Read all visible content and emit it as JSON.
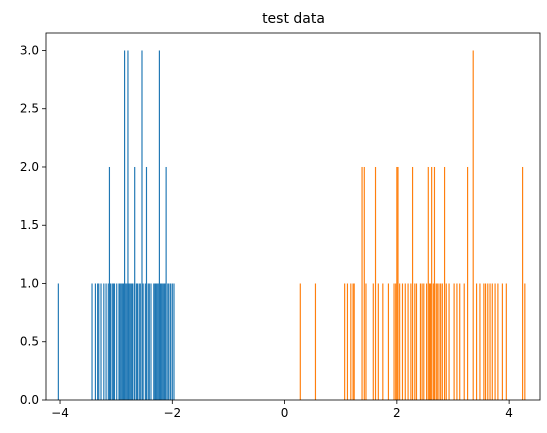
{
  "chart_data": {
    "type": "bar",
    "title": "test data",
    "xlabel": "",
    "ylabel": "",
    "xlim": [
      -4.25,
      4.55
    ],
    "ylim": [
      0,
      3.15
    ],
    "xticks": [
      -4,
      -2,
      0,
      2,
      4
    ],
    "xtick_labels": [
      "−4",
      "−2",
      "0",
      "2",
      "4"
    ],
    "yticks": [
      0.0,
      0.5,
      1.0,
      1.5,
      2.0,
      2.5,
      3.0
    ],
    "ytick_labels": [
      "0.0",
      "0.5",
      "1.0",
      "1.5",
      "2.0",
      "2.5",
      "3.0"
    ],
    "grid": false,
    "bin_width": 0.0206,
    "series": [
      {
        "color": "#1f77b4",
        "points": [
          [
            -4.03,
            1
          ],
          [
            -3.43,
            1
          ],
          [
            -3.37,
            1
          ],
          [
            -3.33,
            1
          ],
          [
            -3.31,
            1
          ],
          [
            -3.27,
            1
          ],
          [
            -3.22,
            1
          ],
          [
            -3.18,
            1
          ],
          [
            -3.14,
            1
          ],
          [
            -3.12,
            2
          ],
          [
            -3.1,
            1
          ],
          [
            -3.07,
            1
          ],
          [
            -3.05,
            1
          ],
          [
            -3.03,
            1
          ],
          [
            -2.99,
            1
          ],
          [
            -2.95,
            1
          ],
          [
            -2.93,
            1
          ],
          [
            -2.91,
            1
          ],
          [
            -2.89,
            1
          ],
          [
            -2.87,
            1
          ],
          [
            -2.85,
            3
          ],
          [
            -2.83,
            1
          ],
          [
            -2.81,
            1
          ],
          [
            -2.79,
            3
          ],
          [
            -2.77,
            1
          ],
          [
            -2.75,
            1
          ],
          [
            -2.73,
            1
          ],
          [
            -2.71,
            1
          ],
          [
            -2.68,
            1
          ],
          [
            -2.67,
            2
          ],
          [
            -2.64,
            1
          ],
          [
            -2.62,
            1
          ],
          [
            -2.59,
            1
          ],
          [
            -2.57,
            1
          ],
          [
            -2.54,
            3
          ],
          [
            -2.52,
            1
          ],
          [
            -2.48,
            1
          ],
          [
            -2.46,
            2
          ],
          [
            -2.43,
            1
          ],
          [
            -2.41,
            1
          ],
          [
            -2.38,
            1
          ],
          [
            -2.33,
            1
          ],
          [
            -2.31,
            1
          ],
          [
            -2.29,
            1
          ],
          [
            -2.27,
            1
          ],
          [
            -2.25,
            1
          ],
          [
            -2.23,
            3
          ],
          [
            -2.21,
            1
          ],
          [
            -2.19,
            1
          ],
          [
            -2.17,
            1
          ],
          [
            -2.15,
            1
          ],
          [
            -2.13,
            1
          ],
          [
            -2.11,
            2
          ],
          [
            -2.08,
            1
          ],
          [
            -2.06,
            1
          ],
          [
            -2.03,
            1
          ],
          [
            -2.0,
            1
          ],
          [
            -1.97,
            1
          ]
        ]
      },
      {
        "color": "#ff7f0e",
        "points": [
          [
            0.28,
            1
          ],
          [
            0.55,
            1
          ],
          [
            1.07,
            1
          ],
          [
            1.12,
            1
          ],
          [
            1.18,
            1
          ],
          [
            1.22,
            1
          ],
          [
            1.24,
            1
          ],
          [
            1.38,
            2
          ],
          [
            1.42,
            2
          ],
          [
            1.45,
            1
          ],
          [
            1.58,
            1
          ],
          [
            1.62,
            2
          ],
          [
            1.67,
            1
          ],
          [
            1.75,
            1
          ],
          [
            1.85,
            1
          ],
          [
            1.95,
            1
          ],
          [
            1.98,
            1
          ],
          [
            2.0,
            2
          ],
          [
            2.02,
            2
          ],
          [
            2.05,
            1
          ],
          [
            2.1,
            1
          ],
          [
            2.15,
            1
          ],
          [
            2.2,
            1
          ],
          [
            2.25,
            1
          ],
          [
            2.28,
            2
          ],
          [
            2.32,
            1
          ],
          [
            2.35,
            1
          ],
          [
            2.42,
            1
          ],
          [
            2.45,
            1
          ],
          [
            2.48,
            1
          ],
          [
            2.53,
            1
          ],
          [
            2.56,
            2
          ],
          [
            2.58,
            1
          ],
          [
            2.6,
            1
          ],
          [
            2.62,
            2
          ],
          [
            2.65,
            1
          ],
          [
            2.67,
            2
          ],
          [
            2.7,
            1
          ],
          [
            2.72,
            1
          ],
          [
            2.75,
            1
          ],
          [
            2.78,
            1
          ],
          [
            2.81,
            1
          ],
          [
            2.85,
            2
          ],
          [
            2.88,
            1
          ],
          [
            2.93,
            1
          ],
          [
            3.02,
            1
          ],
          [
            3.07,
            1
          ],
          [
            3.12,
            1
          ],
          [
            3.2,
            1
          ],
          [
            3.26,
            2
          ],
          [
            3.36,
            3
          ],
          [
            3.42,
            1
          ],
          [
            3.48,
            1
          ],
          [
            3.55,
            1
          ],
          [
            3.58,
            1
          ],
          [
            3.62,
            1
          ],
          [
            3.66,
            1
          ],
          [
            3.7,
            1
          ],
          [
            3.75,
            1
          ],
          [
            3.8,
            1
          ],
          [
            3.88,
            1
          ],
          [
            3.95,
            1
          ],
          [
            4.24,
            2
          ],
          [
            4.28,
            1
          ]
        ]
      }
    ]
  }
}
